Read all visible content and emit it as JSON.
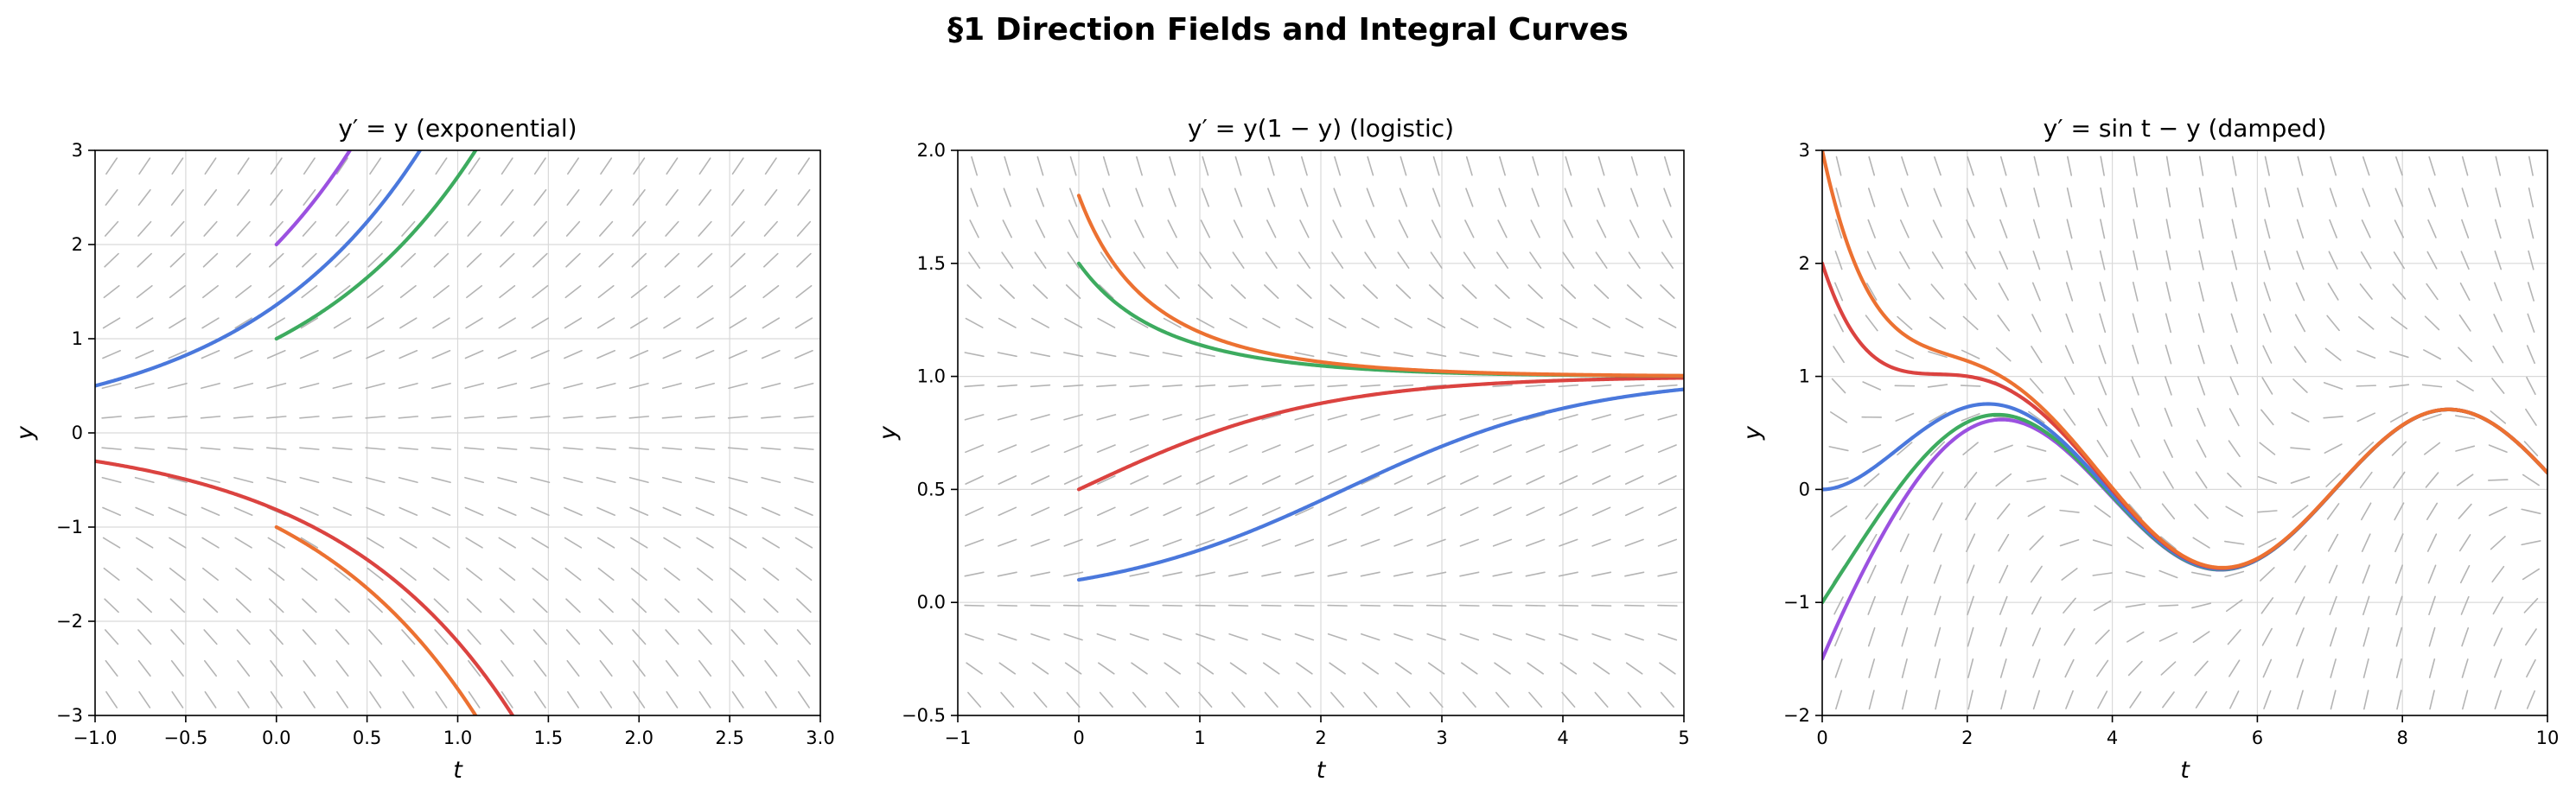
{
  "figure": {
    "title": "§1  Direction Fields and Integral Curves"
  },
  "chart_data": [
    {
      "type": "line",
      "id": "exponential",
      "title": "y′ = y  (exponential)",
      "ode": "y' = y",
      "xlabel": "t",
      "ylabel": "y",
      "xlim": [
        -1,
        3
      ],
      "ylim": [
        -3,
        3
      ],
      "xticks": [
        -1.0,
        -0.5,
        0.0,
        0.5,
        1.0,
        1.5,
        2.0,
        2.5,
        3.0
      ],
      "xtick_labels": [
        "−1.0",
        "−0.5",
        "0.0",
        "0.5",
        "1.0",
        "1.5",
        "2.0",
        "2.5",
        "3.0"
      ],
      "yticks": [
        -3,
        -2,
        -1,
        0,
        1,
        2,
        3
      ],
      "ytick_labels": [
        "−3",
        "−2",
        "−1",
        "0",
        "1",
        "2",
        "3"
      ],
      "grid": true,
      "direction_field": true,
      "series": [
        {
          "color": "#9b51e0",
          "t0": 0,
          "y0": 2,
          "t_range": [
            0,
            0.4055
          ]
        },
        {
          "color": "#4a78dc",
          "t0": -1,
          "y0": 0.5,
          "t_range": [
            -1,
            0.7918
          ]
        },
        {
          "color": "#3dab5f",
          "t0": 0,
          "y0": 1,
          "t_range": [
            0,
            1.0986
          ]
        },
        {
          "color": "#db4340",
          "t0": -1,
          "y0": -0.3,
          "t_range": [
            -1,
            1.3026
          ]
        },
        {
          "color": "#ec7131",
          "t0": 0,
          "y0": -1,
          "t_range": [
            0,
            1.0986
          ]
        }
      ]
    },
    {
      "type": "line",
      "id": "logistic",
      "title": "y′ = y(1 − y)  (logistic)",
      "ode": "y' = y(1-y)",
      "xlabel": "t",
      "ylabel": "y",
      "xlim": [
        -1,
        5
      ],
      "ylim": [
        -0.5,
        2.0
      ],
      "xticks": [
        -1,
        0,
        1,
        2,
        3,
        4,
        5
      ],
      "xtick_labels": [
        "−1",
        "0",
        "1",
        "2",
        "3",
        "4",
        "5"
      ],
      "yticks": [
        -0.5,
        0.0,
        0.5,
        1.0,
        1.5,
        2.0
      ],
      "ytick_labels": [
        "−0.5",
        "0.0",
        "0.5",
        "1.0",
        "1.5",
        "2.0"
      ],
      "grid": true,
      "direction_field": true,
      "series": [
        {
          "color": "#4a78dc",
          "t0": 0,
          "y0": 0.1,
          "t_range": [
            0,
            5
          ]
        },
        {
          "color": "#db4340",
          "t0": 0,
          "y0": 0.5,
          "t_range": [
            0,
            5
          ]
        },
        {
          "color": "#3dab5f",
          "t0": 0,
          "y0": 1.5,
          "t_range": [
            0,
            5
          ]
        },
        {
          "color": "#ec7131",
          "t0": 0,
          "y0": 1.8,
          "t_range": [
            0,
            5
          ]
        }
      ]
    },
    {
      "type": "line",
      "id": "damped",
      "title": "y′ = sin t − y  (damped)",
      "ode": "y' = sin(t) - y",
      "xlabel": "t",
      "ylabel": "y",
      "xlim": [
        0,
        10
      ],
      "ylim": [
        -2,
        3
      ],
      "xticks": [
        0,
        2,
        4,
        6,
        8,
        10
      ],
      "xtick_labels": [
        "0",
        "2",
        "4",
        "6",
        "8",
        "10"
      ],
      "yticks": [
        -2,
        -1,
        0,
        1,
        2,
        3
      ],
      "ytick_labels": [
        "−2",
        "−1",
        "0",
        "1",
        "2",
        "3"
      ],
      "grid": true,
      "direction_field": true,
      "series": [
        {
          "color": "#9b51e0",
          "t0": 0,
          "y0": -1.5,
          "t_range": [
            0,
            10
          ]
        },
        {
          "color": "#3dab5f",
          "t0": 0,
          "y0": -1,
          "t_range": [
            0,
            10
          ]
        },
        {
          "color": "#4a78dc",
          "t0": 0,
          "y0": 0,
          "t_range": [
            0,
            10
          ]
        },
        {
          "color": "#db4340",
          "t0": 0,
          "y0": 2,
          "t_range": [
            0,
            10
          ]
        },
        {
          "color": "#ec7131",
          "t0": 0,
          "y0": 3,
          "t_range": [
            0,
            10
          ]
        }
      ]
    }
  ]
}
